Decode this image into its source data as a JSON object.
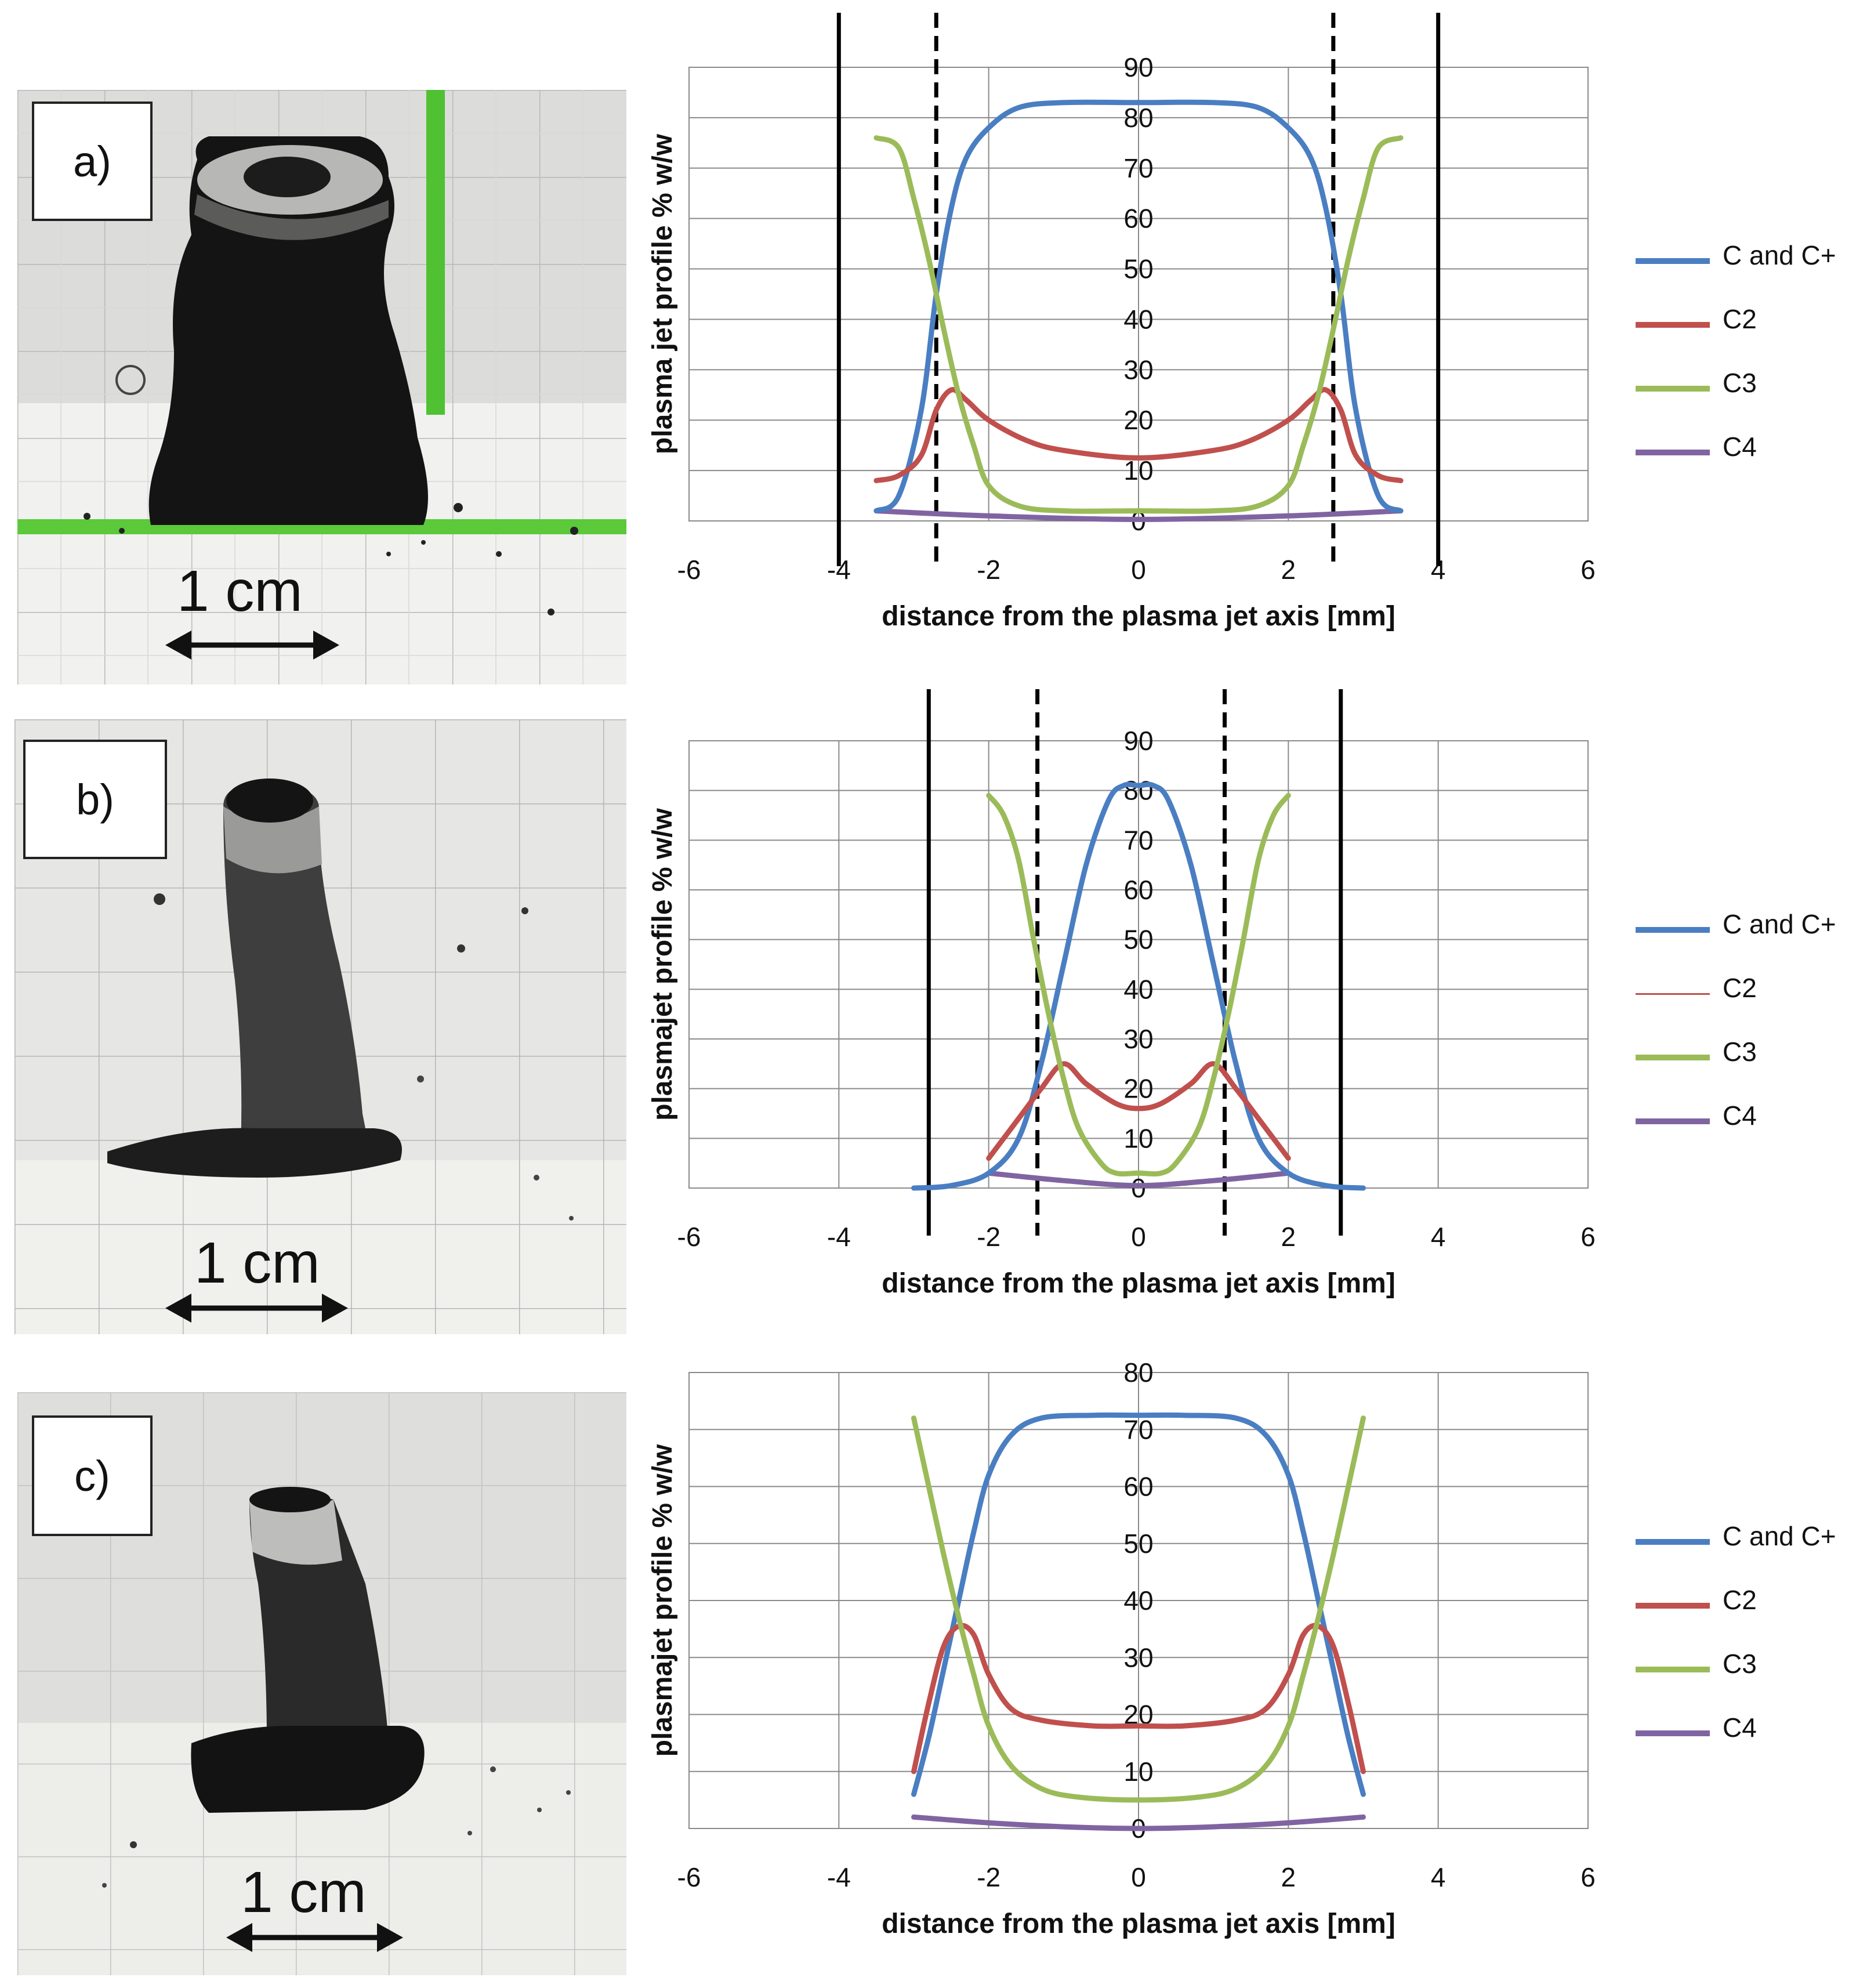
{
  "photos": [
    {
      "label": "a)",
      "scale_text": "1 cm"
    },
    {
      "label": "b)",
      "scale_text": "1 cm"
    },
    {
      "label": "c)",
      "scale_text": "1 cm"
    }
  ],
  "colors": {
    "c_cplus": "#4A7EC2",
    "c2": "#C0504D",
    "c3": "#9BBB59",
    "c4": "#8064A2",
    "grid": "#8a8a8a"
  },
  "chart_data": [
    {
      "type": "line",
      "xlabel": "distance from the plasma jet axis [mm]",
      "ylabel": "plasma jet profile % w/w",
      "xlim": [
        -6,
        6
      ],
      "ylim": [
        0,
        90
      ],
      "xticks": [
        "-6",
        "-4",
        "-2",
        "0",
        "2",
        "4",
        "6"
      ],
      "yticks": [
        "0",
        "10",
        "20",
        "30",
        "40",
        "50",
        "60",
        "70",
        "80",
        "90"
      ],
      "grid": true,
      "legend_position": "right",
      "vlines_solid": [
        -4,
        4
      ],
      "vlines_dashed": [
        -2.7,
        2.6
      ],
      "series": [
        {
          "name": "C and C+",
          "color": "#4A7EC2",
          "x": [
            -3.5,
            -3.2,
            -2.9,
            -2.7,
            -2.5,
            -2.3,
            -2.0,
            -1.6,
            -1.0,
            0,
            1.0,
            1.6,
            2.0,
            2.3,
            2.5,
            2.7,
            2.9,
            3.2,
            3.5
          ],
          "y": [
            2,
            5,
            22,
            45,
            62,
            72,
            78,
            82,
            83,
            83,
            83,
            82,
            78,
            72,
            62,
            45,
            22,
            5,
            2
          ]
        },
        {
          "name": "C2",
          "color": "#C0504D",
          "x": [
            -3.5,
            -3.2,
            -2.9,
            -2.7,
            -2.5,
            -2.3,
            -2.0,
            -1.5,
            -1.0,
            0,
            1.0,
            1.5,
            2.0,
            2.3,
            2.5,
            2.7,
            2.9,
            3.2,
            3.5
          ],
          "y": [
            8,
            9,
            13,
            22,
            26,
            24,
            20,
            16,
            14,
            12.5,
            14,
            16,
            20,
            24,
            26,
            22,
            13,
            9,
            8
          ]
        },
        {
          "name": "C3",
          "color": "#9BBB59",
          "x": [
            -3.5,
            -3.2,
            -3.0,
            -2.8,
            -2.6,
            -2.4,
            -2.2,
            -2.0,
            -1.6,
            -1.0,
            0,
            1.0,
            1.6,
            2.0,
            2.2,
            2.4,
            2.6,
            2.8,
            3.0,
            3.2,
            3.5
          ],
          "y": [
            76,
            74,
            64,
            52,
            38,
            25,
            15,
            7,
            3,
            2,
            2,
            2,
            3,
            7,
            15,
            25,
            38,
            52,
            64,
            74,
            76
          ]
        },
        {
          "name": "C4",
          "color": "#8064A2",
          "x": [
            -3.5,
            -2,
            0,
            2,
            3.5
          ],
          "y": [
            2,
            1,
            0.3,
            1,
            2
          ]
        }
      ]
    },
    {
      "type": "line",
      "xlabel": "distance from the plasma jet axis [mm]",
      "ylabel": "plasmajet profile % w/w",
      "xlim": [
        -6,
        6
      ],
      "ylim": [
        0,
        90
      ],
      "xticks": [
        "-6",
        "-4",
        "-2",
        "0",
        "2",
        "4",
        "6"
      ],
      "yticks": [
        "0",
        "10",
        "20",
        "30",
        "40",
        "50",
        "60",
        "70",
        "80",
        "90"
      ],
      "grid": true,
      "legend_position": "right",
      "vlines_solid": [
        -2.8,
        2.7
      ],
      "vlines_dashed": [
        -1.35,
        1.15
      ],
      "series": [
        {
          "name": "C and C+",
          "color": "#4A7EC2",
          "x": [
            -3,
            -2.5,
            -2,
            -1.6,
            -1.3,
            -1.0,
            -0.7,
            -0.4,
            -0.2,
            0,
            0.2,
            0.4,
            0.7,
            1.0,
            1.3,
            1.6,
            2,
            2.5,
            3
          ],
          "y": [
            0,
            0.5,
            3,
            10,
            25,
            45,
            65,
            78,
            81,
            81,
            81,
            78,
            65,
            45,
            25,
            10,
            3,
            0.5,
            0
          ]
        },
        {
          "name": "C2",
          "color": "#C0504D",
          "x": [
            -2,
            -1.6,
            -1.3,
            -1.0,
            -0.7,
            -0.3,
            0,
            0.3,
            0.7,
            1.0,
            1.3,
            1.6,
            2
          ],
          "y": [
            6,
            14,
            20,
            25,
            21,
            17,
            16,
            17,
            21,
            25,
            20,
            14,
            6
          ]
        },
        {
          "name": "C3",
          "color": "#9BBB59",
          "x": [
            -2,
            -1.8,
            -1.6,
            -1.4,
            -1.2,
            -1.0,
            -0.8,
            -0.5,
            -0.3,
            0,
            0.3,
            0.5,
            0.8,
            1.0,
            1.2,
            1.4,
            1.6,
            1.8,
            2
          ],
          "y": [
            79,
            75,
            66,
            50,
            35,
            22,
            12,
            5,
            3,
            3,
            3,
            5,
            12,
            22,
            35,
            50,
            66,
            75,
            79
          ]
        },
        {
          "name": "C4",
          "color": "#8064A2",
          "x": [
            -2,
            -1,
            0,
            1,
            2
          ],
          "y": [
            3,
            1.5,
            0.5,
            1.5,
            3
          ]
        }
      ]
    },
    {
      "type": "line",
      "xlabel": "distance from the plasma jet axis [mm]",
      "ylabel": "plasmajet profile % w/w",
      "xlim": [
        -6,
        6
      ],
      "ylim": [
        0,
        80
      ],
      "xticks": [
        "-6",
        "-4",
        "-2",
        "0",
        "2",
        "4",
        "6"
      ],
      "yticks": [
        "0",
        "10",
        "20",
        "30",
        "40",
        "50",
        "60",
        "70",
        "80"
      ],
      "grid": true,
      "legend_position": "right",
      "vlines_solid": [],
      "vlines_dashed": [],
      "series": [
        {
          "name": "C and C+",
          "color": "#4A7EC2",
          "x": [
            -3,
            -2.8,
            -2.6,
            -2.4,
            -2.2,
            -2.0,
            -1.7,
            -1.3,
            -0.6,
            0,
            0.6,
            1.3,
            1.7,
            2.0,
            2.2,
            2.4,
            2.6,
            2.8,
            3
          ],
          "y": [
            6,
            16,
            28,
            40,
            52,
            62,
            69,
            72,
            72.5,
            72.5,
            72.5,
            72,
            69,
            62,
            52,
            40,
            28,
            16,
            6
          ]
        },
        {
          "name": "C2",
          "color": "#C0504D",
          "x": [
            -3,
            -2.8,
            -2.6,
            -2.4,
            -2.2,
            -2.0,
            -1.7,
            -1.3,
            -0.6,
            0,
            0.6,
            1.3,
            1.7,
            2.0,
            2.2,
            2.4,
            2.6,
            2.8,
            3
          ],
          "y": [
            10,
            22,
            32,
            35.5,
            34,
            27,
            21,
            19,
            18,
            18,
            18,
            19,
            21,
            27,
            34,
            35.5,
            32,
            22,
            10
          ]
        },
        {
          "name": "C3",
          "color": "#9BBB59",
          "x": [
            -3,
            -2.8,
            -2.6,
            -2.4,
            -2.2,
            -2.0,
            -1.7,
            -1.3,
            -0.8,
            0,
            0.8,
            1.3,
            1.7,
            2.0,
            2.2,
            2.4,
            2.6,
            2.8,
            3
          ],
          "y": [
            72,
            60,
            48,
            37,
            27,
            18,
            11,
            7,
            5.5,
            5,
            5.5,
            7,
            11,
            18,
            27,
            37,
            48,
            60,
            72
          ]
        },
        {
          "name": "C4",
          "color": "#8064A2",
          "x": [
            -3,
            -2,
            -1,
            0,
            1,
            2,
            3
          ],
          "y": [
            2,
            1,
            0.3,
            0,
            0.3,
            1,
            2
          ]
        }
      ]
    }
  ]
}
